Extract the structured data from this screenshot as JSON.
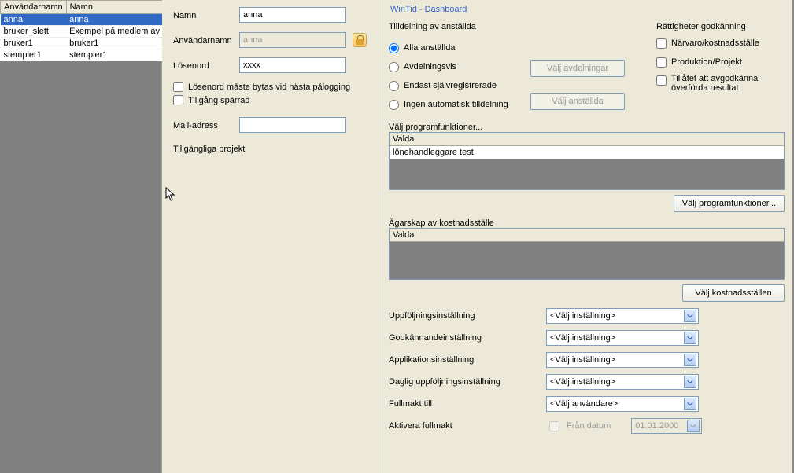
{
  "left_table": {
    "columns": [
      "Användarnamn",
      "Namn"
    ],
    "rows": [
      {
        "username": "anna",
        "name": "anna",
        "selected": true
      },
      {
        "username": "bruker_slett",
        "name": "Exempel på medlem av g",
        "selected": false
      },
      {
        "username": "bruker1",
        "name": "bruker1",
        "selected": false
      },
      {
        "username": "stempler1",
        "name": "stempler1",
        "selected": false
      }
    ]
  },
  "form": {
    "name_label": "Namn",
    "name_value": "anna",
    "username_label": "Användarnamn",
    "username_value": "anna",
    "password_label": "Lösenord",
    "password_value": "xxxx",
    "pw_change_label": "Lösenord måste bytas vid nästa pålogging",
    "access_locked_label": "Tillgång spärrad",
    "mail_label": "Mail-adress",
    "mail_value": "",
    "projects_label": "Tillgängliga projekt"
  },
  "dashboard": {
    "title": "WinTid - Dashboard",
    "assign": {
      "title": "Tilldelning av anställda",
      "options": {
        "all": "Alla anställda",
        "dept": "Avdelningsvis",
        "self": "Endast självregistrerade",
        "none": "Ingen automatisk tilldelning"
      },
      "selected": "all",
      "btn_dept": "Välj avdelningar",
      "btn_emp": "Välj anställda"
    },
    "rights": {
      "title": "Rättigheter godkänning",
      "attendance": "Närvaro/kostnadsställe",
      "production": "Produktion/Projekt",
      "allow_transfer": "Tillåtet att avgodkänna överförda resultat"
    },
    "program_functions": {
      "label": "Välj programfunktioner...",
      "header": "Valda",
      "item": "lönehandleggare test",
      "button": "Välj programfunktioner..."
    },
    "ownership": {
      "label": "Ägarskap av kostnadsställe",
      "header": "Valda",
      "button": "Välj kostnadsställen"
    },
    "settings": {
      "follow_up": {
        "label": "Uppföljningsinställning",
        "value": "<Välj inställning>"
      },
      "approval": {
        "label": "Godkännandeinställning",
        "value": "<Välj inställning>"
      },
      "application": {
        "label": "Applikationsinställning",
        "value": "<Välj inställning>"
      },
      "daily": {
        "label": "Daglig uppföljningsinställning",
        "value": "<Välj inställning>"
      },
      "delegate": {
        "label": "Fullmakt till",
        "value": "<Välj användare>"
      },
      "activate_label": "Aktivera fullmakt",
      "from_date_label": "Från datum",
      "from_date_value": "01.01.2000"
    }
  }
}
